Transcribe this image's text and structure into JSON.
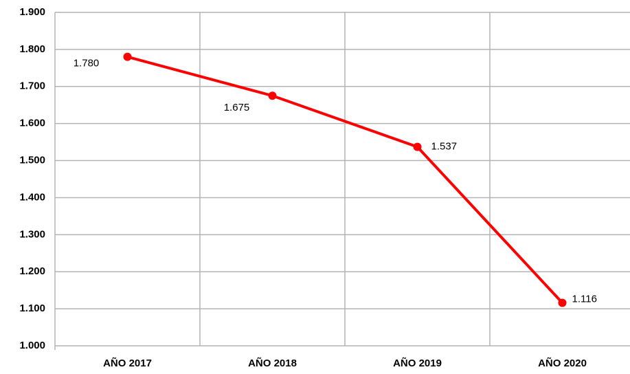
{
  "chart_data": {
    "type": "line",
    "categories": [
      "AÑO 2017",
      "AÑO 2018",
      "AÑO 2019",
      "AÑO 2020"
    ],
    "series": [
      {
        "color": "#ff0000",
        "values": [
          1780,
          1675,
          1537,
          1116
        ],
        "value_labels": [
          "1.780",
          "1.675",
          "1.537",
          "1.116"
        ]
      }
    ],
    "ylim": [
      1000,
      1900
    ],
    "yticks": [
      {
        "value": 1000,
        "label": "1.000"
      },
      {
        "value": 1100,
        "label": "1.100"
      },
      {
        "value": 1200,
        "label": "1.200"
      },
      {
        "value": 1300,
        "label": "1.300"
      },
      {
        "value": 1400,
        "label": "1.400"
      },
      {
        "value": 1500,
        "label": "1.500"
      },
      {
        "value": 1600,
        "label": "1.600"
      },
      {
        "value": 1700,
        "label": "1.700"
      },
      {
        "value": 1800,
        "label": "1.800"
      },
      {
        "value": 1900,
        "label": "1.900"
      }
    ],
    "grid": true
  }
}
